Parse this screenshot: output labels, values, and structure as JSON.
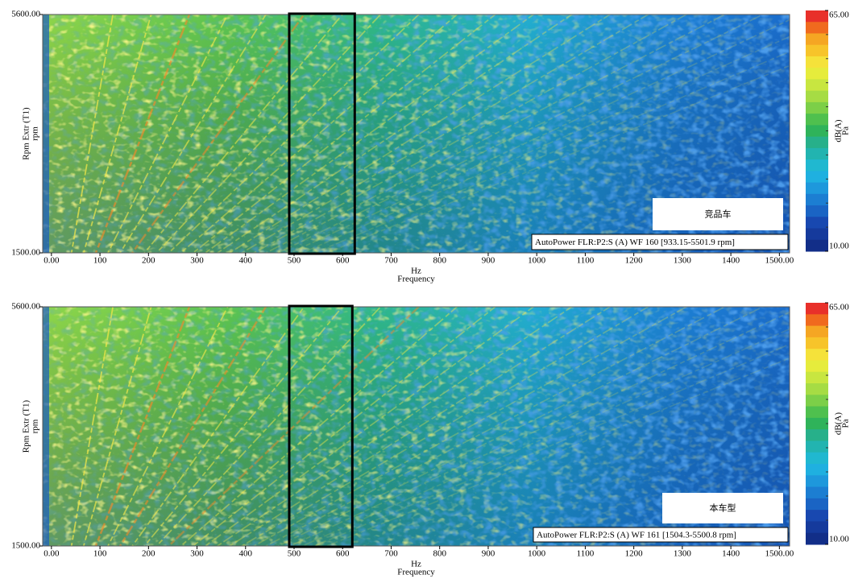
{
  "chart_data": [
    {
      "type": "heatmap",
      "annotation": "竞品车",
      "legend_text": "AutoPower FLR:P2:S (A) WF 160 [933.15-5501.9 rpm]",
      "x_unit": "Hz",
      "xlabel": "Frequency",
      "ylabel": "Rpm Extr (T1)",
      "y_unit": "rpm",
      "colorbar_label": "dB(A)",
      "colorbar_unit": "Pa",
      "xlim": [
        -18,
        1521
      ],
      "xticks": [
        {
          "value": 0,
          "label": "0.00"
        },
        100,
        200,
        300,
        400,
        500,
        600,
        700,
        800,
        900,
        1000,
        1100,
        1200,
        1300,
        1400,
        {
          "value": 1500,
          "label": "1500.00"
        }
      ],
      "ylim": [
        1500,
        5600
      ],
      "yticks": [
        {
          "value": 1500,
          "label": "1500.00"
        },
        {
          "value": 5600,
          "label": "5600.00"
        }
      ],
      "zlim": [
        10,
        65
      ],
      "zticks": [
        {
          "value": 10,
          "label": "10.00"
        },
        {
          "value": 65,
          "label": "65.00"
        }
      ],
      "highlight": [
        490,
        625
      ],
      "colormap": [
        "#e8302a",
        "#f06a1e",
        "#f5a623",
        "#f7c42a",
        "#f5e23a",
        "#e6ec3c",
        "#c8e640",
        "#a6dc44",
        "#7ccf48",
        "#4fc04e",
        "#2fb35a",
        "#27b08a",
        "#22b4b0",
        "#20b8d0",
        "#1fb0e0",
        "#1e98dc",
        "#1c7ed2",
        "#1a64c4",
        "#1848b0",
        "#153a9c",
        "#122e88"
      ]
    },
    {
      "type": "heatmap",
      "annotation": "本车型",
      "legend_text": "AutoPower FLR:P2:S (A) WF 161 [1504.3-5500.8 rpm]",
      "x_unit": "Hz",
      "xlabel": "Frequency",
      "ylabel": "Rpm Extr (T1)",
      "y_unit": "rpm",
      "colorbar_label": "dB(A)",
      "colorbar_unit": "Pa",
      "xlim": [
        -18,
        1521
      ],
      "xticks": [
        {
          "value": 0,
          "label": "0.00"
        },
        100,
        200,
        300,
        400,
        500,
        600,
        700,
        800,
        900,
        1000,
        1100,
        1200,
        1300,
        1400,
        {
          "value": 1500,
          "label": "1500.00"
        }
      ],
      "ylim": [
        1500,
        5600
      ],
      "yticks": [
        {
          "value": 1500,
          "label": "1500.00"
        },
        {
          "value": 5600,
          "label": "5600.00"
        }
      ],
      "zlim": [
        10,
        65
      ],
      "zticks": [
        {
          "value": 10,
          "label": "10.00"
        },
        {
          "value": 65,
          "label": "65.00"
        }
      ],
      "highlight": [
        490,
        620
      ],
      "colormap": [
        "#e8302a",
        "#f06a1e",
        "#f5a623",
        "#f7c42a",
        "#f5e23a",
        "#e6ec3c",
        "#c8e640",
        "#a6dc44",
        "#7ccf48",
        "#4fc04e",
        "#2fb35a",
        "#27b08a",
        "#22b4b0",
        "#20b8d0",
        "#1fb0e0",
        "#1e98dc",
        "#1c7ed2",
        "#1a64c4",
        "#1848b0",
        "#153a9c",
        "#122e88"
      ]
    }
  ]
}
